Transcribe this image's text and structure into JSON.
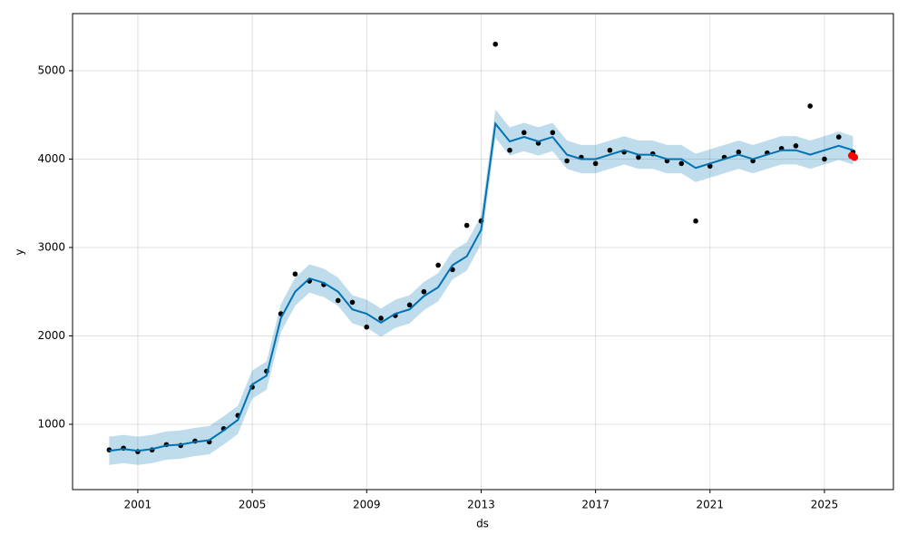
{
  "chart_data": {
    "type": "line",
    "xlabel": "ds",
    "ylabel": "y",
    "xlim": [
      1998.72,
      2027.41
    ],
    "ylim": [
      261,
      5646
    ],
    "xticks": [
      2001,
      2005,
      2009,
      2013,
      2017,
      2021,
      2025
    ],
    "yticks": [
      1000,
      2000,
      3000,
      4000,
      5000
    ],
    "grid": true,
    "x": [
      2000,
      2000.5,
      2001,
      2001.5,
      2002,
      2002.5,
      2003,
      2003.5,
      2004,
      2004.5,
      2005,
      2005.5,
      2006,
      2006.5,
      2007,
      2007.5,
      2008,
      2008.5,
      2009,
      2009.5,
      2010,
      2010.5,
      2011,
      2011.5,
      2012,
      2012.5,
      2013,
      2013.5,
      2014,
      2014.5,
      2015,
      2015.5,
      2016,
      2016.5,
      2017,
      2017.5,
      2018,
      2018.5,
      2019,
      2019.5,
      2020,
      2020.5,
      2021,
      2021.5,
      2022,
      2022.5,
      2023,
      2023.5,
      2024,
      2024.5,
      2025,
      2025.5,
      2026
    ],
    "series": [
      {
        "type": "band",
        "color": "#0072b2",
        "lower": [
          540,
          560,
          540,
          560,
          600,
          610,
          640,
          660,
          770,
          890,
          1290,
          1390,
          2040,
          2340,
          2490,
          2440,
          2340,
          2140,
          2090,
          1990,
          2090,
          2140,
          2290,
          2390,
          2640,
          2740,
          3040,
          4240,
          4040,
          4090,
          4040,
          4090,
          3890,
          3840,
          3840,
          3890,
          3940,
          3890,
          3890,
          3840,
          3840,
          3740,
          3790,
          3840,
          3890,
          3840,
          3890,
          3940,
          3940,
          3890,
          3940,
          3990,
          3940
        ],
        "upper": [
          860,
          880,
          860,
          880,
          920,
          930,
          960,
          980,
          1090,
          1210,
          1610,
          1710,
          2360,
          2660,
          2810,
          2760,
          2660,
          2460,
          2410,
          2310,
          2410,
          2460,
          2610,
          2710,
          2960,
          3060,
          3360,
          4560,
          4360,
          4410,
          4360,
          4410,
          4210,
          4160,
          4160,
          4210,
          4260,
          4210,
          4210,
          4160,
          4160,
          4060,
          4110,
          4160,
          4210,
          4160,
          4210,
          4260,
          4260,
          4210,
          4260,
          4310,
          4260
        ]
      },
      {
        "type": "scatter",
        "color": "#000000",
        "values": [
          710,
          730,
          690,
          710,
          770,
          760,
          810,
          800,
          950,
          1100,
          1420,
          1600,
          2250,
          2700,
          2620,
          2580,
          2400,
          2380,
          2100,
          2200,
          2230,
          2350,
          2500,
          2800,
          2750,
          3250,
          3300,
          5300,
          4100,
          4300,
          4180,
          4300,
          3980,
          4020,
          3950,
          4100,
          4080,
          4020,
          4060,
          3980,
          3950,
          3300,
          3920,
          4020,
          4080,
          3980,
          4070,
          4120,
          4150,
          4600,
          4000,
          4250,
          4080
        ]
      },
      {
        "type": "line",
        "color": "#0072b2",
        "values": [
          700,
          720,
          700,
          720,
          760,
          770,
          800,
          820,
          930,
          1050,
          1450,
          1550,
          2200,
          2500,
          2650,
          2600,
          2500,
          2300,
          2250,
          2150,
          2250,
          2300,
          2450,
          2550,
          2800,
          2900,
          3200,
          4400,
          4200,
          4250,
          4200,
          4250,
          4050,
          4000,
          4000,
          4050,
          4100,
          4050,
          4050,
          4000,
          4000,
          3900,
          3950,
          4000,
          4050,
          4000,
          4050,
          4100,
          4100,
          4050,
          4100,
          4150,
          4100
        ]
      },
      {
        "type": "scatter",
        "color": "#ff0000",
        "x": [
          2025.95,
          2026.05
        ],
        "values": [
          4040,
          4020
        ]
      }
    ]
  }
}
